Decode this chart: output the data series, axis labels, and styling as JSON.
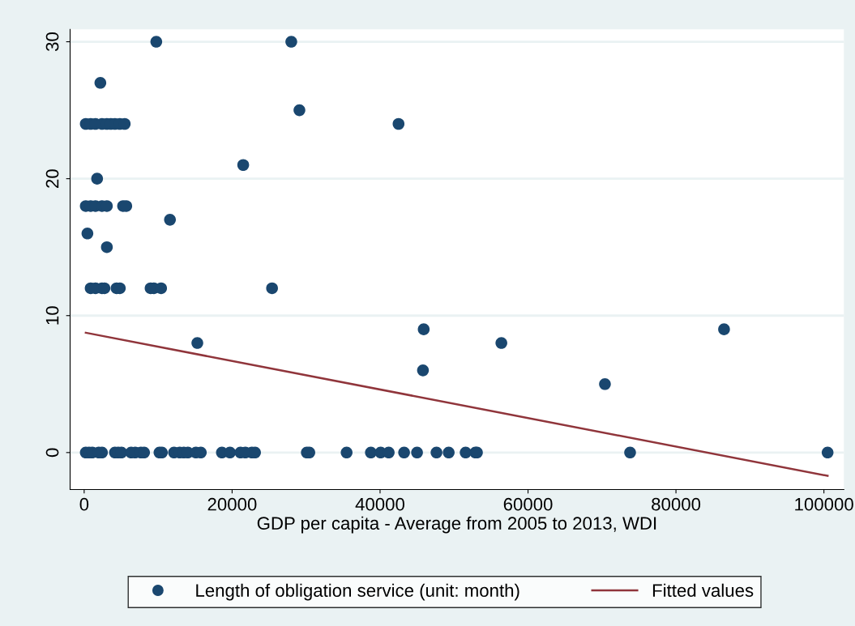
{
  "chart_data": {
    "type": "scatter",
    "xlabel": "GDP per capita - Average from 2005 to 2013, WDI",
    "xlim": [
      -1900,
      102700
    ],
    "ylim": [
      -2.7,
      30.9
    ],
    "xticks": [
      0,
      20000,
      40000,
      60000,
      80000,
      100000
    ],
    "yticks": [
      0,
      10,
      20,
      30
    ],
    "grid": "y",
    "legend": "bottom",
    "series": [
      {
        "name": "Length of obligation service (unit: month)",
        "color": "#1a476f",
        "marker": "circle",
        "x": [
          9750,
          28000,
          29100,
          42500,
          21500,
          11600,
          25400,
          15300,
          45900,
          45800,
          56400,
          70400,
          86500,
          2190,
          220,
          880,
          1530,
          2410,
          3070,
          3610,
          4160,
          4820,
          5480,
          1750,
          220,
          880,
          1530,
          2410,
          3070,
          5260,
          5690,
          440,
          3070,
          880,
          1530,
          2410,
          2740,
          4380,
          4820,
          8980,
          9420,
          10400,
          220,
          660,
          1100,
          1970,
          2410,
          4160,
          4600,
          5040,
          6350,
          6900,
          7670,
          8100,
          10180,
          10510,
          12150,
          12920,
          13470,
          14020,
          15110,
          15770,
          18620,
          19710,
          21130,
          21790,
          22670,
          23100,
          30100,
          30440,
          35480,
          38760,
          40080,
          41170,
          43250,
          45000,
          47630,
          49280,
          51570,
          52890,
          53100,
          73800,
          100500
        ],
        "values": [
          30,
          30,
          25,
          24,
          21,
          17,
          12,
          8,
          9,
          6,
          8,
          5,
          9,
          27,
          24,
          24,
          24,
          24,
          24,
          24,
          24,
          24,
          24,
          20,
          18,
          18,
          18,
          18,
          18,
          18,
          18,
          16,
          15,
          12,
          12,
          12,
          12,
          12,
          12,
          12,
          12,
          12,
          0,
          0,
          0,
          0,
          0,
          0,
          0,
          0,
          0,
          0,
          0,
          0,
          0,
          0,
          0,
          0,
          0,
          0,
          0,
          0,
          0,
          0,
          0,
          0,
          0,
          0,
          0,
          0,
          0,
          0,
          0,
          0,
          0,
          0,
          0,
          0,
          0,
          0,
          0,
          0,
          0
        ]
      },
      {
        "name": "Fitted values",
        "color": "#90353b",
        "type": "line",
        "x": [
          220,
          100500
        ],
        "values": [
          8.75,
          -1.7
        ]
      }
    ]
  }
}
